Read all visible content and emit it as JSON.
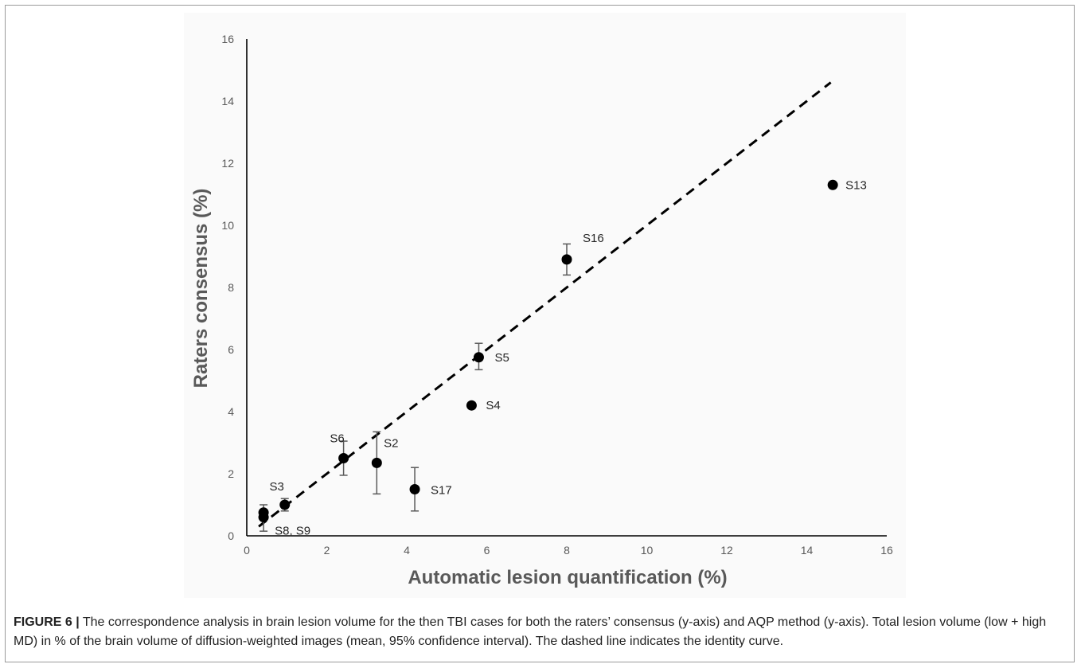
{
  "chart_data": {
    "type": "scatter",
    "xlabel": "Automatic lesion quantification (%)",
    "ylabel": "Raters consensus (%)",
    "xlim": [
      0,
      16
    ],
    "ylim": [
      0,
      16
    ],
    "xticks": [
      0,
      2,
      4,
      6,
      8,
      10,
      12,
      14,
      16
    ],
    "yticks": [
      0,
      2,
      4,
      6,
      8,
      10,
      12,
      14,
      16
    ],
    "grid": false,
    "legend": "none",
    "identity_line": {
      "from": [
        0.3,
        0.3
      ],
      "to": [
        14.6,
        14.6
      ],
      "style": "dashed"
    },
    "points": [
      {
        "label": "S8, S9",
        "x": 0.42,
        "y": 0.6,
        "err_low": 0.45,
        "err_high": 0.4
      },
      {
        "label": "",
        "x": 0.42,
        "y": 0.75,
        "err_low": 0.0,
        "err_high": 0.0
      },
      {
        "label": "S3",
        "x": 0.95,
        "y": 1.0,
        "err_low": 0.2,
        "err_high": 0.2
      },
      {
        "label": "S6",
        "x": 2.42,
        "y": 2.5,
        "err_low": 0.55,
        "err_high": 0.55
      },
      {
        "label": "S2",
        "x": 3.25,
        "y": 2.35,
        "err_low": 1.0,
        "err_high": 1.0
      },
      {
        "label": "S17",
        "x": 4.2,
        "y": 1.5,
        "err_low": 0.7,
        "err_high": 0.7
      },
      {
        "label": "S4",
        "x": 5.62,
        "y": 4.2,
        "err_low": 0.0,
        "err_high": 0.0
      },
      {
        "label": "S5",
        "x": 5.8,
        "y": 5.75,
        "err_low": 0.4,
        "err_high": 0.45
      },
      {
        "label": "S16",
        "x": 8.0,
        "y": 8.9,
        "err_low": 0.5,
        "err_high": 0.5
      },
      {
        "label": "S13",
        "x": 14.65,
        "y": 11.3,
        "err_low": 0.0,
        "err_high": 0.0
      }
    ]
  },
  "caption": {
    "figure_label": "FIGURE 6 |",
    "text": " The correspondence analysis in brain lesion volume for the then TBI cases for both the raters’ consensus (y-axis) and AQP method (y-axis). Total lesion volume (low + high MD) in % of the brain volume of diffusion-weighted images (mean, 95% confidence interval). The dashed line indicates the identity curve."
  }
}
